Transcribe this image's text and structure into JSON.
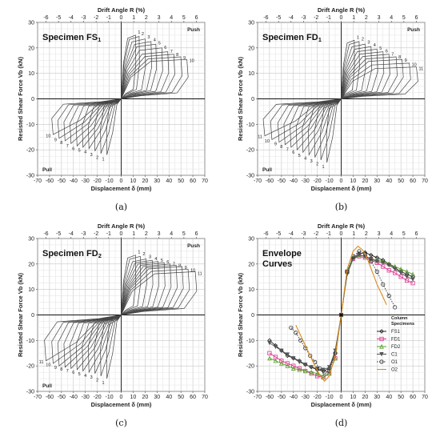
{
  "chart_data": [
    {
      "id": "a",
      "type": "line",
      "title": "Specimen FS",
      "title_sub": "1",
      "caption": "(a)",
      "xlabel": "Displacement δ (mm)",
      "ylabel": "Resisted Shear Force Vb (kN)",
      "x2label": "Drift Angle R (%)",
      "xlim": [
        -70,
        70
      ],
      "ylim": [
        -30,
        30
      ],
      "x_ticks": [
        -70,
        -60,
        -50,
        -40,
        -30,
        -20,
        -10,
        0,
        10,
        20,
        30,
        40,
        50,
        60,
        70
      ],
      "y_ticks": [
        -30,
        -20,
        -10,
        0,
        10,
        20,
        30
      ],
      "x2_ticks": [
        -6,
        -5,
        -4,
        -3,
        -2,
        -1,
        0,
        1,
        2,
        3,
        4,
        5,
        6
      ],
      "push_label": "Push",
      "pull_label": "Pull",
      "grid": true,
      "cycles_pos": [
        [
          1,
          12,
          25
        ],
        [
          2,
          15,
          24.5
        ],
        [
          3,
          20,
          23.5
        ],
        [
          4,
          25,
          22.5
        ],
        [
          5,
          29,
          21.5
        ],
        [
          6,
          34,
          20
        ],
        [
          7,
          39,
          18.5
        ],
        [
          8,
          44,
          17.5
        ],
        [
          9,
          50,
          16.5
        ],
        [
          10,
          55,
          15.5
        ]
      ],
      "cycles_neg": [
        [
          1,
          -12,
          -22
        ],
        [
          2,
          -17,
          -21.5
        ],
        [
          3,
          -22,
          -20.5
        ],
        [
          4,
          -27,
          -19.5
        ],
        [
          5,
          -32,
          -19
        ],
        [
          6,
          -37,
          -18.5
        ],
        [
          7,
          -42,
          -17.5
        ],
        [
          8,
          -47,
          -16.5
        ],
        [
          9,
          -52,
          -15.5
        ],
        [
          10,
          -57,
          -14
        ]
      ],
      "cycle_labels_pos": [
        "1",
        "2",
        "3",
        "4",
        "5",
        "6",
        "7",
        "8",
        "9",
        "10"
      ],
      "cycle_labels_neg": [
        "1",
        "2",
        "3",
        "4",
        "5",
        "6",
        "7",
        "8",
        "9",
        "10"
      ]
    },
    {
      "id": "b",
      "type": "line",
      "title": "Specimen FD",
      "title_sub": "1",
      "caption": "(b)",
      "xlabel": "Displacement δ (mm)",
      "ylabel": "Resisted Shear Force Vb (kN)",
      "x2label": "Drift Angle R (%)",
      "xlim": [
        -70,
        70
      ],
      "ylim": [
        -30,
        30
      ],
      "x_ticks": [
        -70,
        -60,
        -50,
        -40,
        -30,
        -20,
        -10,
        0,
        10,
        20,
        30,
        40,
        50,
        60,
        70
      ],
      "y_ticks": [
        -30,
        -20,
        -10,
        0,
        10,
        20,
        30
      ],
      "x2_ticks": [
        -6,
        -5,
        -4,
        -3,
        -2,
        -1,
        0,
        1,
        2,
        3,
        4,
        5,
        6
      ],
      "push_label": "Push",
      "pull_label": "Pull",
      "grid": true,
      "cycles_pos": [
        [
          1,
          11,
          23
        ],
        [
          2,
          15,
          22.5
        ],
        [
          3,
          20,
          21.5
        ],
        [
          4,
          25,
          20.5
        ],
        [
          5,
          30,
          19.5
        ],
        [
          6,
          35,
          18.5
        ],
        [
          7,
          40,
          17.5
        ],
        [
          8,
          46,
          16.5
        ],
        [
          9,
          51,
          15.5
        ],
        [
          10,
          57,
          14
        ],
        [
          11,
          63,
          12.5
        ]
      ],
      "cycles_neg": [
        [
          1,
          -12,
          -25
        ],
        [
          2,
          -17,
          -24
        ],
        [
          3,
          -22,
          -23
        ],
        [
          4,
          -27,
          -22
        ],
        [
          5,
          -32,
          -21
        ],
        [
          6,
          -37,
          -20
        ],
        [
          7,
          -42,
          -19
        ],
        [
          8,
          -47,
          -18
        ],
        [
          9,
          -52,
          -17
        ],
        [
          10,
          -58,
          -16
        ],
        [
          11,
          -64,
          -14.5
        ]
      ],
      "cycle_labels_pos": [
        "1",
        "2",
        "3",
        "4",
        "5",
        "6",
        "7",
        "8",
        "9",
        "10",
        "11"
      ],
      "cycle_labels_neg": [
        "1",
        "2",
        "3",
        "4",
        "5",
        "6",
        "7",
        "8",
        "9",
        "10",
        "11"
      ]
    },
    {
      "id": "c",
      "type": "line",
      "title": "Specimen FD",
      "title_sub": "2",
      "caption": "(c)",
      "xlabel": "Displacement δ (mm)",
      "ylabel": "Resisted Shear Force Vb (kN)",
      "x2label": "Drift Angle R (%)",
      "xlim": [
        -70,
        70
      ],
      "ylim": [
        -30,
        30
      ],
      "x_ticks": [
        -70,
        -60,
        -50,
        -40,
        -30,
        -20,
        -10,
        0,
        10,
        20,
        30,
        40,
        50,
        60,
        70
      ],
      "y_ticks": [
        -30,
        -20,
        -10,
        0,
        10,
        20,
        30
      ],
      "x2_ticks": [
        -6,
        -5,
        -4,
        -3,
        -2,
        -1,
        0,
        1,
        2,
        3,
        4,
        5,
        6
      ],
      "push_label": "Push",
      "pull_label": "Pull",
      "grid": true,
      "cycles_pos": [
        [
          1,
          12,
          23.5
        ],
        [
          2,
          16,
          23
        ],
        [
          3,
          21,
          22
        ],
        [
          4,
          26,
          21.5
        ],
        [
          5,
          31,
          21
        ],
        [
          6,
          36,
          20.5
        ],
        [
          7,
          41,
          20
        ],
        [
          8,
          46,
          19.5
        ],
        [
          9,
          51,
          19
        ],
        [
          10,
          56,
          18
        ],
        [
          11,
          62,
          17
        ]
      ],
      "cycles_neg": [
        [
          1,
          -12,
          -25
        ],
        [
          2,
          -17,
          -24
        ],
        [
          3,
          -22,
          -23
        ],
        [
          4,
          -27,
          -22.5
        ],
        [
          5,
          -32,
          -22
        ],
        [
          6,
          -37,
          -21.5
        ],
        [
          7,
          -42,
          -21
        ],
        [
          8,
          -47,
          -20.5
        ],
        [
          9,
          -52,
          -20
        ],
        [
          10,
          -57,
          -19
        ],
        [
          11,
          -63,
          -18
        ]
      ],
      "cycle_labels_pos": [
        "1",
        "2",
        "3",
        "4",
        "5",
        "6",
        "7",
        "8",
        "9",
        "10",
        "11"
      ],
      "cycle_labels_neg": [
        "1",
        "2",
        "3",
        "4",
        "5",
        "6",
        "7",
        "8",
        "9",
        "10",
        "11"
      ]
    },
    {
      "id": "d",
      "type": "line",
      "title": "Envelope",
      "title2": "Curves",
      "caption": "(d)",
      "xlabel": "Displacement δ (mm)",
      "ylabel": "Resisted Shear Force Vb (kN)",
      "x2label": "Drift Angle R (%)",
      "xlim": [
        -70,
        70
      ],
      "ylim": [
        -30,
        30
      ],
      "x_ticks": [
        -70,
        -60,
        -50,
        -40,
        -30,
        -20,
        -10,
        0,
        10,
        20,
        30,
        40,
        50,
        60,
        70
      ],
      "y_ticks": [
        -30,
        -20,
        -10,
        0,
        10,
        20,
        30
      ],
      "x2_ticks": [
        -6,
        -5,
        -4,
        -3,
        -2,
        -1,
        0,
        1,
        2,
        3,
        4,
        5,
        6
      ],
      "grid": true,
      "legend_title": "Column Specimens",
      "legend_position": "lower-right",
      "series": [
        {
          "name": "FS1",
          "color": "#222222",
          "marker": "diamond",
          "dash": false,
          "x": [
            -60,
            -55,
            -50,
            -45,
            -40,
            -35,
            -30,
            -25,
            -20,
            -15,
            -10,
            -5,
            0,
            5,
            10,
            15,
            20,
            25,
            30,
            35,
            40,
            45,
            50,
            55,
            60
          ],
          "y": [
            -10,
            -12,
            -14,
            -16,
            -17,
            -18,
            -19.5,
            -20.5,
            -21.5,
            -22,
            -21,
            -15,
            0,
            17,
            22.5,
            24,
            24.5,
            23.5,
            22.5,
            21.5,
            20,
            18.5,
            17,
            16,
            15
          ]
        },
        {
          "name": "FD1",
          "color": "#e0338f",
          "marker": "square",
          "dash": false,
          "x": [
            -60,
            -55,
            -50,
            -45,
            -40,
            -35,
            -30,
            -25,
            -20,
            -15,
            -10,
            -5,
            0,
            5,
            10,
            15,
            20,
            25,
            30,
            35,
            40,
            45,
            50,
            55,
            60
          ],
          "y": [
            -15,
            -16.5,
            -18,
            -19,
            -20,
            -21,
            -22,
            -23,
            -24,
            -24.5,
            -23,
            -17,
            0,
            17,
            22,
            23,
            22.5,
            21.5,
            20.5,
            19,
            17.5,
            16.5,
            15,
            13.5,
            12.5
          ]
        },
        {
          "name": "FD2",
          "color": "#5aa02c",
          "marker": "triangle",
          "dash": false,
          "x": [
            -60,
            -55,
            -50,
            -45,
            -40,
            -35,
            -30,
            -25,
            -20,
            -15,
            -10,
            -5,
            0,
            5,
            10,
            15,
            20,
            25,
            30,
            35,
            40,
            45,
            50,
            55,
            60
          ],
          "y": [
            -17,
            -18,
            -19,
            -20,
            -21,
            -21.5,
            -22,
            -22.5,
            -23,
            -24,
            -23,
            -17,
            0,
            17,
            22.5,
            23.5,
            23,
            22,
            21.5,
            21,
            20,
            19,
            18,
            17,
            16
          ]
        },
        {
          "name": "C1",
          "color": "#555555",
          "marker": "tri-down",
          "dash": false,
          "x": [
            -60,
            -55,
            -50,
            -45,
            -40,
            -35,
            -30,
            -25,
            -20,
            -15,
            -10,
            -5,
            0,
            5,
            10,
            15,
            20,
            25,
            30,
            35,
            40,
            45,
            50,
            55,
            60
          ],
          "y": [
            -11,
            -12.5,
            -14,
            -15.5,
            -17,
            -18.5,
            -19.5,
            -20.5,
            -21,
            -21.5,
            -20.5,
            -14,
            0,
            16,
            22,
            23.5,
            23,
            22,
            21,
            20.5,
            19.5,
            18,
            16.5,
            15,
            14
          ]
        },
        {
          "name": "O1",
          "color": "#333333",
          "marker": "circle",
          "dash": true,
          "x": [
            -42,
            -38,
            -34,
            -30,
            -26,
            -22,
            -18,
            -14,
            -10,
            -5,
            0,
            5,
            10,
            15,
            20,
            25,
            30,
            35,
            40,
            45
          ],
          "y": [
            -5,
            -7,
            -10,
            -13,
            -16,
            -18.5,
            -21,
            -22.5,
            -22,
            -15,
            0,
            17,
            23,
            25,
            24,
            21,
            17,
            12,
            7.5,
            3
          ]
        },
        {
          "name": "O2",
          "color": "#d98a1a",
          "marker": "none",
          "dash": false,
          "x": [
            -38,
            -34,
            -30,
            -26,
            -22,
            -18,
            -14,
            -10,
            -5,
            0,
            5,
            10,
            14,
            18,
            22,
            26,
            30,
            34,
            38
          ],
          "y": [
            -4,
            -8,
            -12,
            -16,
            -20,
            -23.5,
            -26,
            -24,
            -16,
            0,
            18,
            25,
            27,
            25.5,
            22,
            17,
            12,
            8,
            4
          ]
        }
      ]
    }
  ]
}
